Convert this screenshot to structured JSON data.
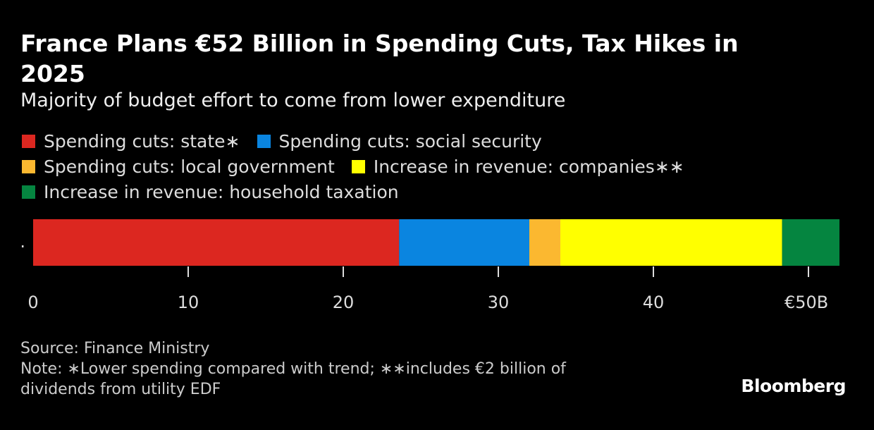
{
  "chart_data": {
    "type": "stacked-bar-horizontal",
    "title": "France Plans €52 Billion in Spending Cuts, Tax Hikes in 2025",
    "subtitle": "Majority of budget effort to come from lower expenditure",
    "categories": [
      "."
    ],
    "series": [
      {
        "name": "Spending cuts: state∗",
        "color": "#dc2720",
        "values": [
          23.6
        ]
      },
      {
        "name": "Spending cuts: social security",
        "color": "#0a85e0",
        "values": [
          8.4
        ]
      },
      {
        "name": "Spending cuts: local government",
        "color": "#fbb830",
        "values": [
          2.0
        ]
      },
      {
        "name": "Increase in revenue: companies∗∗",
        "color": "#ffff00",
        "values": [
          14.3
        ]
      },
      {
        "name": "Increase in revenue: household taxation",
        "color": "#058540",
        "values": [
          3.7
        ]
      }
    ],
    "xlim": [
      0,
      52
    ],
    "xticks": [
      0,
      10,
      20,
      30,
      40,
      {
        "value": 50,
        "label": "€50B"
      }
    ],
    "source": "Source: Finance Ministry",
    "note": "Note: ∗Lower spending compared with trend; ∗∗includes €2 billion of dividends from utility EDF",
    "brand": "Bloomberg"
  }
}
